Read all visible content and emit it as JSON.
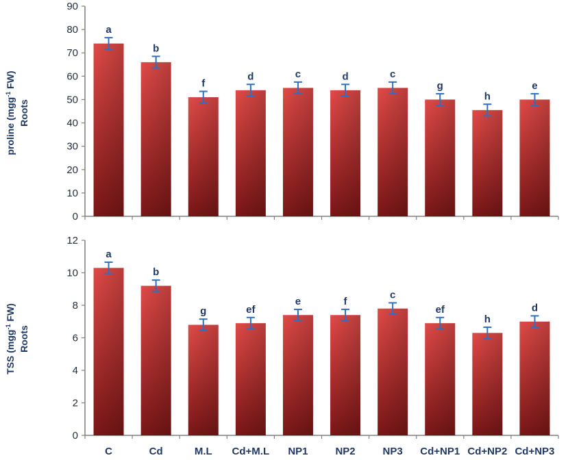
{
  "chart_data": [
    {
      "type": "bar",
      "ylabel_line1": "proline (mgg",
      "ylabel_sup": "-1",
      "ylabel_line1_tail": " FW)",
      "ylabel_line2": "Roots",
      "ylim": [
        0,
        90
      ],
      "yticks": [
        0,
        10,
        20,
        30,
        40,
        50,
        60,
        70,
        80,
        90
      ],
      "categories": [
        "C",
        "Cd",
        "M.L",
        "Cd+M.L",
        "NP1",
        "NP2",
        "NP3",
        "Cd+NP1",
        "Cd+NP2",
        "Cd+NP3"
      ],
      "values": [
        74,
        66,
        51,
        54,
        55,
        54,
        55,
        50,
        45.5,
        50
      ],
      "errors": [
        2.5,
        2.5,
        2.5,
        2.5,
        2.5,
        2.5,
        2.5,
        2.5,
        2.5,
        2.5
      ],
      "letters": [
        "a",
        "b",
        "f",
        "d",
        "c",
        "d",
        "c",
        "g",
        "h",
        "e"
      ],
      "show_category_labels": false
    },
    {
      "type": "bar",
      "ylabel_line1": "TSS (mgg",
      "ylabel_sup": "-1",
      "ylabel_line1_tail": " FW)",
      "ylabel_line2": "Roots",
      "ylim": [
        0,
        12
      ],
      "yticks": [
        0,
        2,
        4,
        6,
        8,
        10,
        12
      ],
      "categories": [
        "C",
        "Cd",
        "M.L",
        "Cd+M.L",
        "NP1",
        "NP2",
        "NP3",
        "Cd+NP1",
        "Cd+NP2",
        "Cd+NP3"
      ],
      "values": [
        10.3,
        9.2,
        6.8,
        6.9,
        7.4,
        7.4,
        7.8,
        6.9,
        6.3,
        7.0
      ],
      "errors": [
        0.35,
        0.35,
        0.35,
        0.35,
        0.35,
        0.35,
        0.35,
        0.35,
        0.35,
        0.35
      ],
      "letters": [
        "a",
        "b",
        "g",
        "ef",
        "e",
        "f",
        "c",
        "ef",
        "h",
        "d"
      ],
      "show_category_labels": true
    }
  ],
  "colors": {
    "bar_light": "#e04a47",
    "bar_dark": "#7a1616",
    "error_bar": "#2e6fc0",
    "axis": "#7f7f7f",
    "label": "#1f3864"
  }
}
